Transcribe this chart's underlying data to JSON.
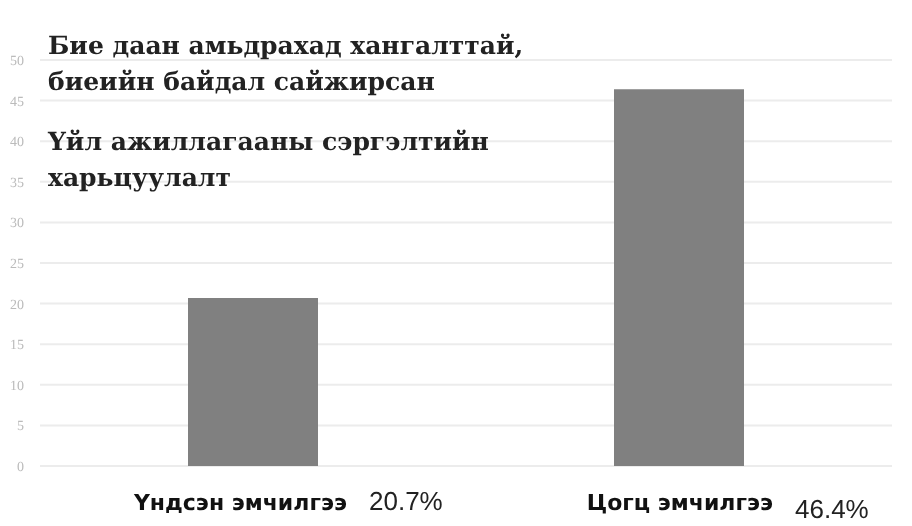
{
  "chart_data": {
    "type": "bar",
    "title": "Бие даан амьдрахад хангалттай, биеийн байдал сайжирсан",
    "subtitle": "Үйл ажиллагааны сэргэлтийн харьцуулалт",
    "categories": [
      "Үндсэн эмчилгээ",
      "Цогц эмчилгээ"
    ],
    "values": [
      20.7,
      46.4
    ],
    "value_labels": [
      "20.7%",
      "46.4%"
    ],
    "color": "#808080",
    "ylim": [
      0,
      50
    ],
    "yticks": [
      0,
      5,
      10,
      15,
      20,
      25,
      30,
      35,
      40,
      45,
      50
    ],
    "grid": "y"
  }
}
